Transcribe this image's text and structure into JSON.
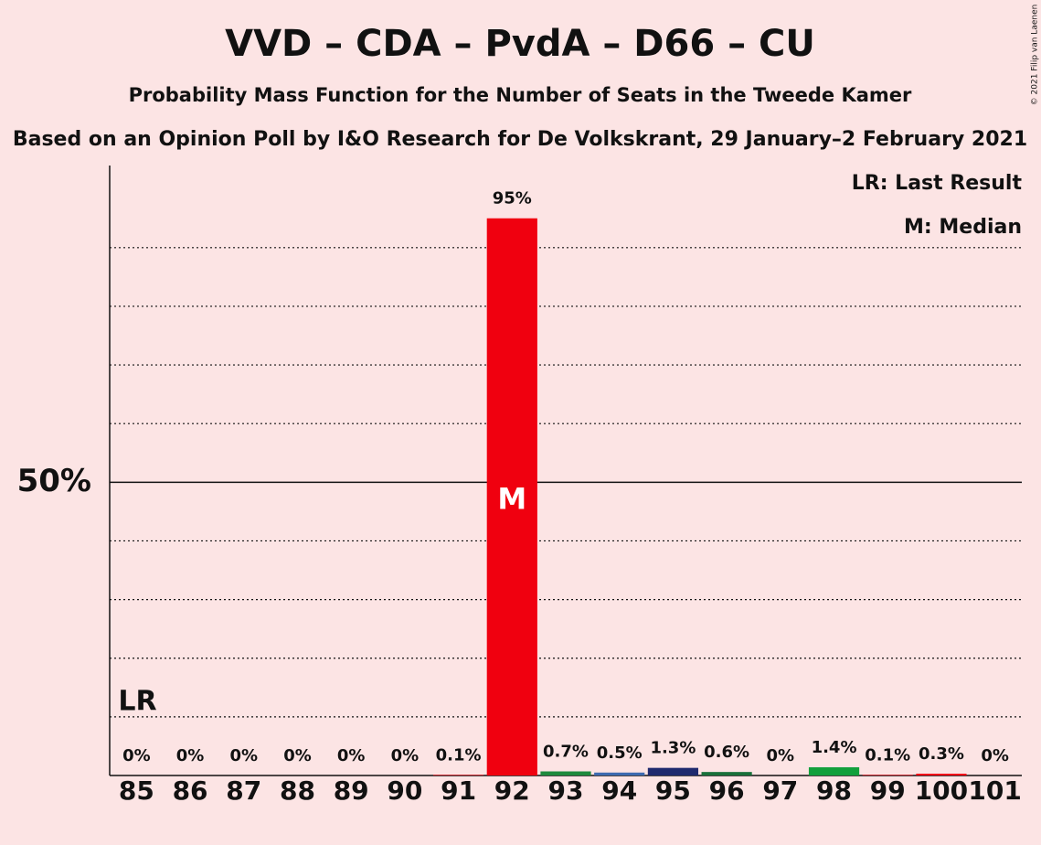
{
  "chart_data": {
    "type": "bar",
    "title": "VVD – CDA – PvdA – D66 – CU",
    "subtitle": "Probability Mass Function for the Number of Seats in the Tweede Kamer",
    "subtitle2": "Based on an Opinion Poll by I&O Research for De Volkskrant, 29 January–2 February 2021",
    "copyright": "© 2021 Filip van Laenen",
    "legend_lr": "LR: Last Result",
    "legend_median": "M: Median",
    "lr_label": "LR",
    "median_label": "M",
    "last_result": 85,
    "median": 92,
    "categories": [
      "85",
      "86",
      "87",
      "88",
      "89",
      "90",
      "91",
      "92",
      "93",
      "94",
      "95",
      "96",
      "97",
      "98",
      "99",
      "100",
      "101"
    ],
    "values": [
      0,
      0,
      0,
      0,
      0,
      0,
      0.1,
      95,
      0.7,
      0.5,
      1.3,
      0.6,
      0,
      1.4,
      0.1,
      0.3,
      0
    ],
    "value_labels": [
      "0%",
      "0%",
      "0%",
      "0%",
      "0%",
      "0%",
      "0.1%",
      "95%",
      "0.7%",
      "0.5%",
      "1.3%",
      "0.6%",
      "0%",
      "1.4%",
      "0.1%",
      "0.3%",
      "0%"
    ],
    "colors": [
      "#f0000f",
      "#f0000f",
      "#f0000f",
      "#f0000f",
      "#f0000f",
      "#f0000f",
      "#f0000f",
      "#f0000f",
      "#1e8a3c",
      "#3d6ab0",
      "#1f2a6e",
      "#19703a",
      "#1e8a3c",
      "#12a03c",
      "#f0000f",
      "#f0000f",
      "#f0000f"
    ],
    "ylim": [
      0,
      104
    ],
    "yticks": [
      {
        "value": 50,
        "label": "50%"
      }
    ],
    "minor_yticks": [
      10,
      20,
      30,
      40,
      60,
      70,
      80,
      90
    ],
    "grid": true
  }
}
